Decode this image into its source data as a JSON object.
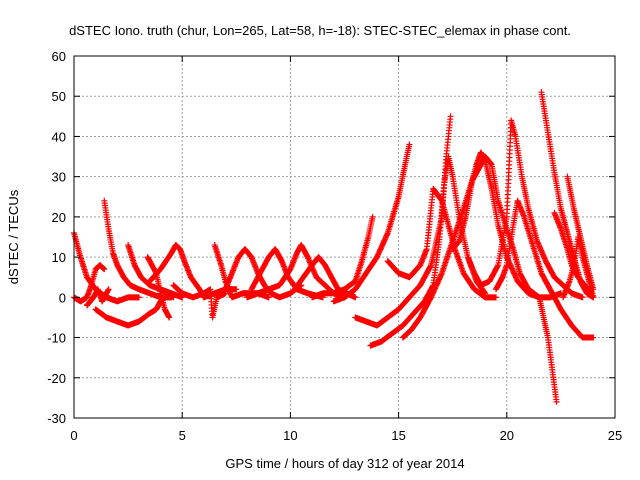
{
  "chart_data": {
    "type": "scatter",
    "title": "dSTEC Iono. truth (chur, Lon=265, Lat=58, h=-18): STEC-STEC_elemax in phase cont.",
    "xlabel": "GPS time / hours of day 312 of year 2014",
    "ylabel": "dSTEC  / TECUs",
    "xlim": [
      0,
      25
    ],
    "ylim": [
      -30,
      60
    ],
    "xticks": [
      0,
      5,
      10,
      15,
      20,
      25
    ],
    "yticks": [
      -30,
      -20,
      -10,
      0,
      10,
      20,
      30,
      40,
      50,
      60
    ],
    "xtick_labels": [
      "0",
      "5",
      "10",
      "15",
      "20",
      "25"
    ],
    "ytick_labels": [
      "-30",
      "-20",
      "-10",
      "0",
      "10",
      "20",
      "30",
      "40",
      "50",
      "60"
    ],
    "grid": true,
    "marker": "+",
    "color": "#ff0000",
    "segments": [
      [
        [
          0.0,
          16
        ],
        [
          0.3,
          10
        ],
        [
          0.6,
          5
        ],
        [
          1.0,
          2
        ],
        [
          1.5,
          0
        ],
        [
          2.0,
          -1
        ],
        [
          2.5,
          0
        ],
        [
          3.0,
          0
        ]
      ],
      [
        [
          0.0,
          0
        ],
        [
          0.3,
          -1
        ],
        [
          0.6,
          0
        ],
        [
          0.8,
          3
        ],
        [
          1.0,
          7
        ],
        [
          1.2,
          8
        ],
        [
          1.4,
          7
        ]
      ],
      [
        [
          0.6,
          -2
        ],
        [
          0.9,
          0
        ],
        [
          1.1,
          2
        ],
        [
          1.3,
          -1
        ],
        [
          1.6,
          2
        ]
      ],
      [
        [
          1.0,
          -3
        ],
        [
          1.5,
          -5
        ],
        [
          2.0,
          -6
        ],
        [
          2.5,
          -7
        ],
        [
          3.0,
          -6
        ],
        [
          3.5,
          -4
        ],
        [
          3.8,
          -3
        ],
        [
          4.0,
          -1
        ],
        [
          4.3,
          1
        ],
        [
          4.6,
          0
        ]
      ],
      [
        [
          1.4,
          24
        ],
        [
          1.6,
          17
        ],
        [
          1.8,
          11
        ],
        [
          2.0,
          8
        ],
        [
          2.3,
          5
        ],
        [
          2.6,
          3
        ],
        [
          3.0,
          2
        ],
        [
          3.5,
          1
        ],
        [
          4.0,
          0
        ],
        [
          4.5,
          0
        ]
      ],
      [
        [
          2.5,
          13
        ],
        [
          2.8,
          8
        ],
        [
          3.1,
          5
        ],
        [
          3.5,
          3
        ],
        [
          4.0,
          2
        ],
        [
          4.5,
          1
        ],
        [
          5.0,
          0
        ]
      ],
      [
        [
          3.4,
          10
        ],
        [
          3.8,
          6
        ],
        [
          4.0,
          1
        ],
        [
          4.2,
          -3
        ],
        [
          4.4,
          -5
        ]
      ],
      [
        [
          3.5,
          4
        ],
        [
          4.0,
          7
        ],
        [
          4.5,
          11
        ],
        [
          4.7,
          13
        ],
        [
          4.9,
          12
        ],
        [
          5.1,
          9
        ],
        [
          5.4,
          5
        ],
        [
          5.8,
          2
        ],
        [
          6.0,
          0
        ],
        [
          6.5,
          1
        ],
        [
          7.0,
          2
        ],
        [
          7.5,
          2
        ]
      ],
      [
        [
          4.6,
          3
        ],
        [
          5.0,
          1
        ],
        [
          5.5,
          0
        ],
        [
          6.0,
          1
        ],
        [
          6.3,
          2
        ],
        [
          6.4,
          -5
        ],
        [
          6.6,
          0
        ],
        [
          7.0,
          1
        ]
      ],
      [
        [
          6.5,
          13
        ],
        [
          6.8,
          8
        ],
        [
          7.0,
          4
        ],
        [
          7.3,
          0
        ],
        [
          7.8,
          1
        ],
        [
          8.5,
          1
        ],
        [
          9.0,
          0
        ]
      ],
      [
        [
          7.0,
          2
        ],
        [
          7.3,
          6
        ],
        [
          7.6,
          10
        ],
        [
          7.9,
          12
        ],
        [
          8.2,
          10
        ],
        [
          8.5,
          6
        ],
        [
          8.8,
          3
        ],
        [
          9.1,
          1
        ],
        [
          9.5,
          0
        ],
        [
          10.0,
          1
        ],
        [
          10.5,
          3
        ]
      ],
      [
        [
          8.2,
          2
        ],
        [
          8.6,
          6
        ],
        [
          9.0,
          10
        ],
        [
          9.3,
          12
        ],
        [
          9.6,
          9
        ],
        [
          9.9,
          5
        ],
        [
          10.3,
          2
        ],
        [
          10.8,
          1
        ],
        [
          11.5,
          0
        ]
      ],
      [
        [
          8.0,
          0
        ],
        [
          8.5,
          1
        ],
        [
          9.0,
          2
        ],
        [
          9.5,
          3
        ],
        [
          10.0,
          7
        ],
        [
          10.3,
          11
        ],
        [
          10.5,
          13
        ],
        [
          10.8,
          10
        ],
        [
          11.2,
          5
        ],
        [
          11.6,
          3
        ],
        [
          12.0,
          1
        ],
        [
          12.5,
          0
        ]
      ],
      [
        [
          10.2,
          2
        ],
        [
          10.6,
          5
        ],
        [
          11.0,
          8
        ],
        [
          11.3,
          10
        ],
        [
          11.6,
          8
        ],
        [
          11.9,
          5
        ],
        [
          12.2,
          2
        ],
        [
          12.6,
          1
        ],
        [
          13.0,
          0
        ]
      ],
      [
        [
          11.0,
          0
        ],
        [
          11.5,
          1
        ],
        [
          12.0,
          1
        ],
        [
          12.5,
          2
        ],
        [
          13.0,
          4
        ],
        [
          13.3,
          9
        ],
        [
          13.6,
          15
        ],
        [
          13.8,
          20
        ]
      ],
      [
        [
          12.0,
          -1
        ],
        [
          12.5,
          0
        ],
        [
          13.0,
          2
        ],
        [
          13.5,
          6
        ],
        [
          14.0,
          10
        ],
        [
          14.5,
          16
        ],
        [
          15.0,
          25
        ],
        [
          15.3,
          33
        ],
        [
          15.5,
          38
        ]
      ],
      [
        [
          13.0,
          -5
        ],
        [
          13.5,
          -6
        ],
        [
          14.0,
          -7
        ],
        [
          14.5,
          -5
        ],
        [
          15.0,
          -3
        ],
        [
          15.5,
          0
        ],
        [
          16.0,
          3
        ],
        [
          16.5,
          8
        ],
        [
          17.0,
          20
        ],
        [
          17.2,
          35
        ],
        [
          17.4,
          45
        ]
      ],
      [
        [
          13.7,
          -12
        ],
        [
          14.2,
          -11
        ],
        [
          14.7,
          -9
        ],
        [
          15.2,
          -7
        ],
        [
          15.7,
          -4
        ],
        [
          16.2,
          -1
        ],
        [
          16.6,
          3
        ],
        [
          16.9,
          15
        ],
        [
          17.1,
          28
        ],
        [
          17.3,
          35
        ],
        [
          17.5,
          30
        ],
        [
          17.8,
          20
        ],
        [
          18.2,
          10
        ],
        [
          18.6,
          4
        ],
        [
          19.0,
          1
        ]
      ],
      [
        [
          15.2,
          -10
        ],
        [
          15.6,
          -8
        ],
        [
          16.0,
          -5
        ],
        [
          16.5,
          0
        ],
        [
          17.0,
          6
        ],
        [
          17.5,
          14
        ],
        [
          18.0,
          22
        ],
        [
          18.4,
          29
        ],
        [
          18.6,
          33
        ],
        [
          18.8,
          36
        ],
        [
          19.0,
          34
        ],
        [
          19.3,
          27
        ],
        [
          19.6,
          18
        ],
        [
          20.0,
          10
        ],
        [
          20.5,
          4
        ],
        [
          21.0,
          1
        ],
        [
          21.5,
          0
        ]
      ],
      [
        [
          14.5,
          9
        ],
        [
          15.0,
          6
        ],
        [
          15.5,
          5
        ],
        [
          16.0,
          8
        ],
        [
          16.3,
          12
        ],
        [
          16.6,
          27
        ],
        [
          17.0,
          24
        ],
        [
          17.3,
          18
        ],
        [
          17.6,
          12
        ],
        [
          18.0,
          6
        ],
        [
          18.5,
          2
        ],
        [
          19.0,
          0
        ],
        [
          19.5,
          0
        ]
      ],
      [
        [
          17.5,
          12
        ],
        [
          17.8,
          14
        ],
        [
          18.1,
          20
        ],
        [
          18.4,
          29
        ],
        [
          18.7,
          32
        ],
        [
          19.0,
          35
        ],
        [
          19.3,
          33
        ],
        [
          19.6,
          24
        ],
        [
          20.0,
          17
        ],
        [
          20.3,
          12
        ],
        [
          20.6,
          6
        ],
        [
          21.0,
          2
        ],
        [
          21.5,
          0
        ],
        [
          22.0,
          0
        ],
        [
          22.5,
          1
        ]
      ],
      [
        [
          18.2,
          10
        ],
        [
          18.5,
          6
        ],
        [
          18.8,
          3
        ],
        [
          19.2,
          4
        ],
        [
          19.6,
          8
        ],
        [
          20.0,
          20
        ],
        [
          20.2,
          44
        ],
        [
          20.4,
          40
        ],
        [
          20.7,
          30
        ],
        [
          21.0,
          22
        ],
        [
          21.4,
          14
        ],
        [
          21.8,
          9
        ],
        [
          22.2,
          5
        ],
        [
          22.6,
          3
        ],
        [
          23.0,
          1
        ],
        [
          23.5,
          0
        ]
      ],
      [
        [
          19.5,
          2
        ],
        [
          19.8,
          5
        ],
        [
          20.0,
          8
        ],
        [
          20.3,
          18
        ],
        [
          20.5,
          24
        ],
        [
          20.8,
          20
        ],
        [
          21.2,
          13
        ],
        [
          21.6,
          6
        ],
        [
          22.0,
          2
        ],
        [
          22.5,
          -3
        ],
        [
          23.0,
          -7
        ],
        [
          23.5,
          -10
        ],
        [
          24.0,
          -10
        ]
      ],
      [
        [
          21.5,
          0
        ],
        [
          21.7,
          -5
        ],
        [
          21.9,
          -10
        ],
        [
          22.1,
          -18
        ],
        [
          22.3,
          -26
        ]
      ],
      [
        [
          21.6,
          51
        ],
        [
          21.9,
          41
        ],
        [
          22.2,
          31
        ],
        [
          22.5,
          22
        ],
        [
          22.8,
          16
        ],
        [
          23.1,
          10
        ],
        [
          23.4,
          4
        ],
        [
          23.7,
          1
        ],
        [
          24.0,
          0
        ]
      ],
      [
        [
          22.2,
          21
        ],
        [
          22.5,
          17
        ],
        [
          22.8,
          12
        ],
        [
          23.0,
          8
        ],
        [
          23.3,
          5
        ],
        [
          23.6,
          3
        ],
        [
          23.9,
          1
        ]
      ],
      [
        [
          22.6,
          0
        ],
        [
          22.9,
          4
        ],
        [
          23.1,
          8
        ],
        [
          23.3,
          15
        ],
        [
          23.5,
          10
        ],
        [
          23.8,
          4
        ],
        [
          24.0,
          0
        ]
      ],
      [
        [
          22.8,
          30
        ],
        [
          23.1,
          22
        ],
        [
          23.4,
          15
        ],
        [
          23.7,
          8
        ],
        [
          24.0,
          2
        ]
      ]
    ]
  }
}
